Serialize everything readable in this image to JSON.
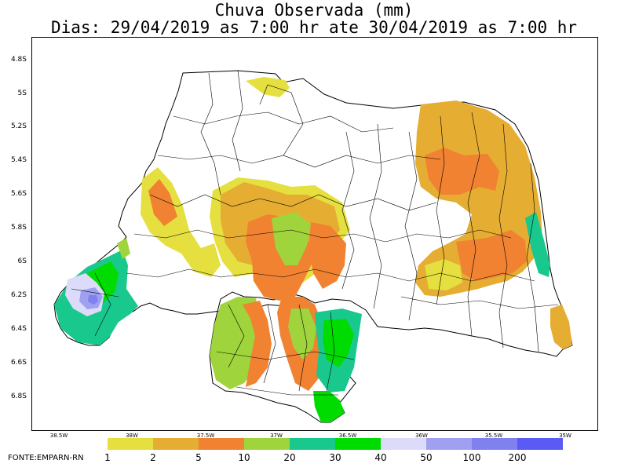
{
  "title": {
    "line1": "Chuva Observada (mm)",
    "line2": "Dias: 29/04/2019 as 7:00 hr ate 30/04/2019 as 7:00 hr"
  },
  "axes": {
    "y_ticks": [
      "4.8S",
      "5S",
      "5.2S",
      "5.4S",
      "5.6S",
      "5.8S",
      "6S",
      "6.2S",
      "6.4S",
      "6.6S",
      "6.8S"
    ],
    "x_ticks": [
      "38.5W",
      "38W",
      "37.5W",
      "37W",
      "36.5W",
      "36W",
      "35.5W",
      "35W"
    ]
  },
  "legend": {
    "unit": "mm",
    "labels": [
      "1",
      "2",
      "5",
      "10",
      "20",
      "30",
      "40",
      "50",
      "100",
      "200"
    ],
    "colors": [
      "#e5df3f",
      "#e5ad32",
      "#f08232",
      "#a0d43c",
      "#19c88c",
      "#00dc00",
      "#dcdcfa",
      "#a0a0f0",
      "#8080ee",
      "#5a5af5"
    ]
  },
  "source": "FONTE:EMPARN-RN"
}
